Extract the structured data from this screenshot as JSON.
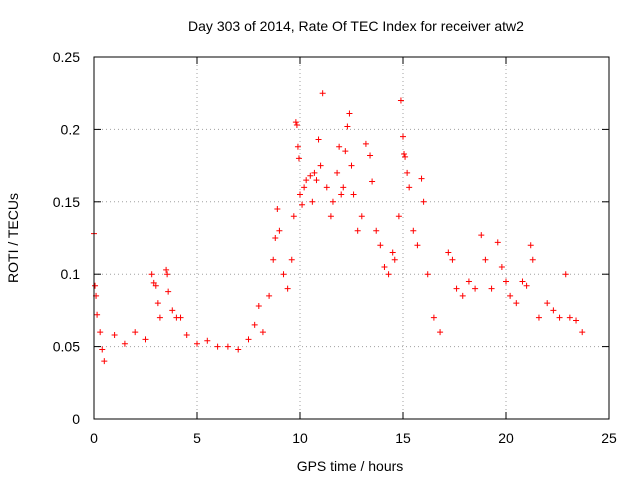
{
  "chart_data": {
    "type": "scatter",
    "title": "Day 303 of 2014, Rate Of TEC Index for receiver atw2",
    "xlabel": "GPS time / hours",
    "ylabel": "ROTI / TECUs",
    "xlim": [
      0,
      25
    ],
    "ylim": [
      0,
      0.25
    ],
    "xticks": [
      0,
      5,
      10,
      15,
      20,
      25
    ],
    "xtick_labels": [
      "0",
      "5",
      "10",
      "15",
      "20",
      "25"
    ],
    "yticks": [
      0,
      0.05,
      0.1,
      0.15,
      0.2,
      0.25
    ],
    "ytick_labels": [
      "0",
      "0.05",
      "0.1",
      "0.15",
      "0.2",
      "0.25"
    ],
    "grid": true,
    "marker": "+",
    "color": "#ff0000",
    "series": [
      {
        "name": "ROTI",
        "points": [
          [
            0.0,
            0.128
          ],
          [
            0.05,
            0.092
          ],
          [
            0.1,
            0.085
          ],
          [
            0.15,
            0.072
          ],
          [
            0.3,
            0.06
          ],
          [
            0.4,
            0.048
          ],
          [
            0.5,
            0.04
          ],
          [
            1.0,
            0.058
          ],
          [
            1.5,
            0.052
          ],
          [
            2.0,
            0.06
          ],
          [
            2.5,
            0.055
          ],
          [
            2.8,
            0.1
          ],
          [
            2.9,
            0.094
          ],
          [
            3.0,
            0.092
          ],
          [
            3.1,
            0.08
          ],
          [
            3.2,
            0.07
          ],
          [
            3.5,
            0.103
          ],
          [
            3.55,
            0.1
          ],
          [
            3.6,
            0.088
          ],
          [
            3.8,
            0.075
          ],
          [
            4.0,
            0.07
          ],
          [
            4.2,
            0.07
          ],
          [
            4.5,
            0.058
          ],
          [
            5.0,
            0.052
          ],
          [
            5.5,
            0.054
          ],
          [
            6.0,
            0.05
          ],
          [
            6.5,
            0.05
          ],
          [
            7.0,
            0.048
          ],
          [
            7.5,
            0.055
          ],
          [
            7.8,
            0.065
          ],
          [
            8.0,
            0.078
          ],
          [
            8.2,
            0.06
          ],
          [
            8.5,
            0.085
          ],
          [
            8.7,
            0.11
          ],
          [
            8.8,
            0.125
          ],
          [
            8.9,
            0.145
          ],
          [
            9.0,
            0.13
          ],
          [
            9.2,
            0.1
          ],
          [
            9.4,
            0.09
          ],
          [
            9.6,
            0.11
          ],
          [
            9.7,
            0.14
          ],
          [
            9.8,
            0.205
          ],
          [
            9.85,
            0.203
          ],
          [
            9.9,
            0.188
          ],
          [
            9.95,
            0.18
          ],
          [
            10.0,
            0.155
          ],
          [
            10.1,
            0.148
          ],
          [
            10.2,
            0.16
          ],
          [
            10.3,
            0.165
          ],
          [
            10.5,
            0.168
          ],
          [
            10.6,
            0.15
          ],
          [
            10.7,
            0.17
          ],
          [
            10.8,
            0.165
          ],
          [
            10.9,
            0.193
          ],
          [
            11.0,
            0.175
          ],
          [
            11.1,
            0.225
          ],
          [
            11.3,
            0.16
          ],
          [
            11.5,
            0.14
          ],
          [
            11.6,
            0.15
          ],
          [
            11.8,
            0.17
          ],
          [
            11.9,
            0.188
          ],
          [
            12.0,
            0.155
          ],
          [
            12.1,
            0.16
          ],
          [
            12.2,
            0.185
          ],
          [
            12.3,
            0.202
          ],
          [
            12.4,
            0.211
          ],
          [
            12.5,
            0.175
          ],
          [
            12.6,
            0.155
          ],
          [
            12.8,
            0.13
          ],
          [
            13.0,
            0.14
          ],
          [
            13.2,
            0.19
          ],
          [
            13.4,
            0.182
          ],
          [
            13.5,
            0.164
          ],
          [
            13.7,
            0.13
          ],
          [
            13.9,
            0.12
          ],
          [
            14.1,
            0.105
          ],
          [
            14.3,
            0.1
          ],
          [
            14.5,
            0.115
          ],
          [
            14.6,
            0.11
          ],
          [
            14.8,
            0.14
          ],
          [
            14.9,
            0.22
          ],
          [
            15.0,
            0.195
          ],
          [
            15.05,
            0.183
          ],
          [
            15.1,
            0.181
          ],
          [
            15.2,
            0.17
          ],
          [
            15.3,
            0.16
          ],
          [
            15.5,
            0.13
          ],
          [
            15.7,
            0.12
          ],
          [
            15.9,
            0.166
          ],
          [
            16.0,
            0.15
          ],
          [
            16.2,
            0.1
          ],
          [
            16.5,
            0.07
          ],
          [
            16.8,
            0.06
          ],
          [
            17.2,
            0.115
          ],
          [
            17.4,
            0.11
          ],
          [
            17.6,
            0.09
          ],
          [
            17.9,
            0.085
          ],
          [
            18.2,
            0.095
          ],
          [
            18.5,
            0.09
          ],
          [
            18.8,
            0.127
          ],
          [
            19.0,
            0.11
          ],
          [
            19.3,
            0.09
          ],
          [
            19.6,
            0.122
          ],
          [
            19.8,
            0.105
          ],
          [
            20.0,
            0.095
          ],
          [
            20.2,
            0.085
          ],
          [
            20.5,
            0.08
          ],
          [
            20.8,
            0.095
          ],
          [
            21.0,
            0.092
          ],
          [
            21.2,
            0.12
          ],
          [
            21.3,
            0.11
          ],
          [
            21.6,
            0.07
          ],
          [
            22.0,
            0.08
          ],
          [
            22.3,
            0.075
          ],
          [
            22.6,
            0.07
          ],
          [
            22.9,
            0.1
          ],
          [
            23.1,
            0.07
          ],
          [
            23.4,
            0.068
          ],
          [
            23.7,
            0.06
          ]
        ]
      }
    ]
  }
}
